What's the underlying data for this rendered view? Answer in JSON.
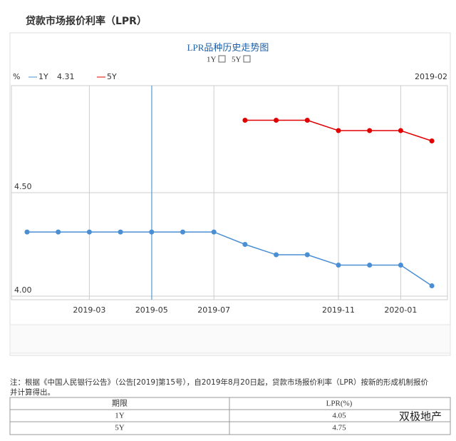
{
  "header": {
    "title": "贷款市场报价利率（LPR）"
  },
  "chart_data": {
    "type": "line",
    "title": "LPR品种历史走势图",
    "y_unit": "%",
    "categories": [
      null,
      null,
      "2019-03",
      null,
      "2019-05",
      null,
      "2019-07",
      null,
      null,
      null,
      "2019-11",
      null,
      "2020-01",
      null
    ],
    "series": [
      {
        "name": "1Y",
        "color": "#4a8fd4",
        "values": [
          4.31,
          4.31,
          4.31,
          4.31,
          4.31,
          4.31,
          4.31,
          4.25,
          4.2,
          4.2,
          4.15,
          4.15,
          4.15,
          4.05
        ]
      },
      {
        "name": "5Y",
        "color": "#e00000",
        "values": [
          null,
          null,
          null,
          null,
          null,
          null,
          null,
          4.85,
          4.85,
          4.85,
          4.8,
          4.8,
          4.8,
          4.75
        ]
      }
    ],
    "hover": {
      "date": "2019-02",
      "value": 4.31
    },
    "ylim": [
      4.0,
      5.0
    ],
    "yticks": [
      {
        "value": 4.0,
        "label": "4.00"
      },
      {
        "value": 4.5,
        "label": "4.50"
      }
    ],
    "grid": true
  },
  "note": [
    "注：根据《中国人民银行公告》（公告[2019]第15号），自2019年8月20日起，贷款市场报价利率（LPR）按新的形成机制报价",
    "并计算得出。"
  ],
  "table": {
    "header": [
      "期限",
      "LPR(%)"
    ],
    "rows": [
      [
        "1Y",
        "4.05"
      ],
      [
        "5Y",
        "4.75"
      ]
    ]
  },
  "watermark": "双极地产"
}
